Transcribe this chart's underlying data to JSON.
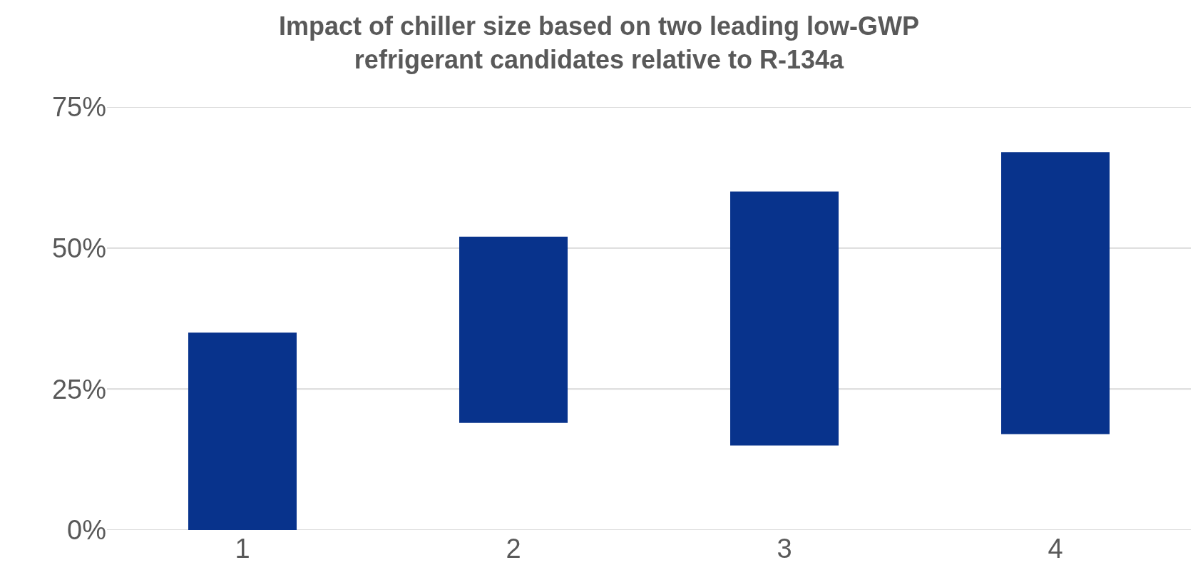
{
  "chart_data": {
    "type": "bar",
    "title": "Impact of chiller size based on two leading low-GWP refrigerant candidates relative to R-134a",
    "categories": [
      "1",
      "2",
      "3",
      "4"
    ],
    "values": [
      35,
      33,
      45,
      50
    ],
    "base": [
      0,
      19,
      15,
      17
    ],
    "color": "#08338c",
    "ylim": [
      0,
      75
    ],
    "yticks": [
      {
        "value": 0,
        "label": "0%"
      },
      {
        "value": 25,
        "label": "25%"
      },
      {
        "value": 50,
        "label": "50%"
      },
      {
        "value": 75,
        "label": "75%"
      }
    ],
    "grid": "y"
  }
}
